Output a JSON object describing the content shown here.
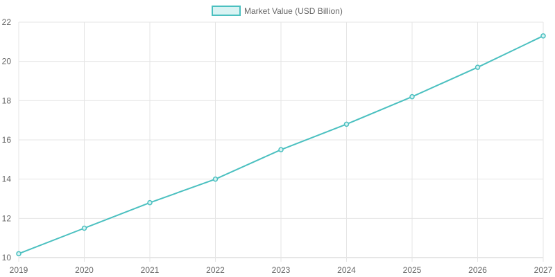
{
  "chart_data": {
    "type": "line",
    "title": "",
    "xlabel": "",
    "ylabel": "",
    "x": [
      "2019",
      "2020",
      "2021",
      "2022",
      "2023",
      "2024",
      "2025",
      "2026",
      "2027"
    ],
    "series": [
      {
        "name": "Market Value (USD Billion)",
        "values": [
          10.2,
          11.5,
          12.8,
          14.0,
          15.5,
          16.8,
          18.2,
          19.7,
          21.3
        ],
        "color": "#4bc0c0",
        "fill_color": "#d9f3f3"
      }
    ],
    "ylim": [
      10,
      22
    ],
    "yticks": [
      10,
      12,
      14,
      16,
      18,
      20,
      22
    ],
    "grid": true,
    "legend_position": "top"
  }
}
